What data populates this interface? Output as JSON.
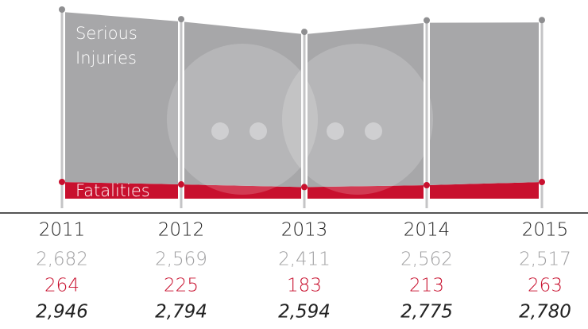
{
  "chart_data": {
    "type": "area",
    "stacked": true,
    "categories": [
      "2011",
      "2012",
      "2013",
      "2014",
      "2015"
    ],
    "series": [
      {
        "name": "Serious Injuries",
        "color": "#a7a7a9",
        "values": [
          2682,
          2569,
          2411,
          2562,
          2517
        ],
        "value_labels": [
          "2,682",
          "2,569",
          "2,411",
          "2,562",
          "2,517"
        ]
      },
      {
        "name": "Fatalities",
        "color": "#c8102e",
        "values": [
          264,
          225,
          183,
          213,
          263
        ]
      }
    ],
    "totals": {
      "values": [
        2946,
        2794,
        2594,
        2775,
        2780
      ],
      "value_labels": [
        "2,946",
        "2,794",
        "2,594",
        "2,775",
        "2,780"
      ]
    }
  }
}
